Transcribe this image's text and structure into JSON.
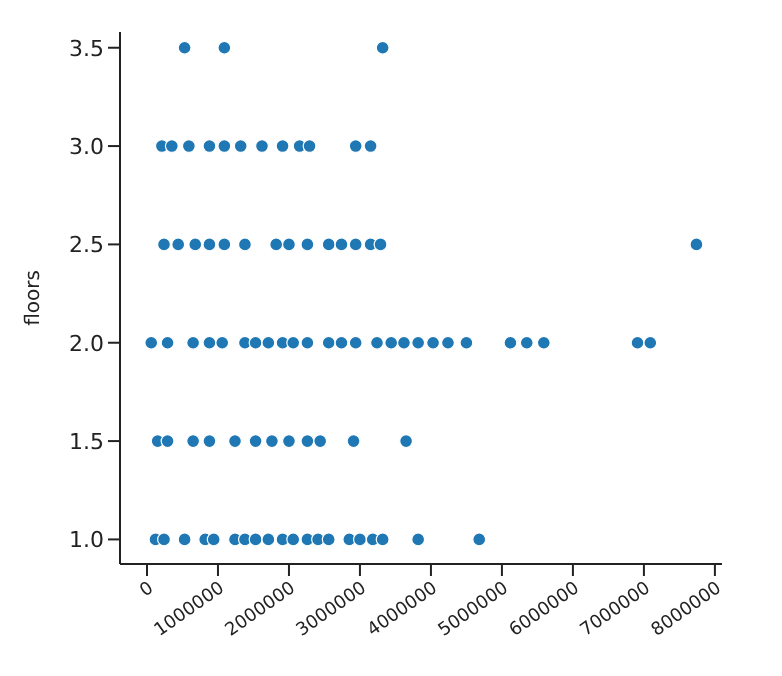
{
  "chart_data": {
    "type": "scatter",
    "ylabel": "floors",
    "color": "#1f77b4",
    "marker": "circle",
    "grid": false,
    "x": [
      60000,
      290000,
      650000,
      880000,
      1060000,
      1380000,
      1530000,
      1710000,
      1910000,
      2060000,
      2260000,
      2560000,
      2740000,
      2940000,
      3240000,
      3440000,
      3620000,
      3820000,
      4030000,
      4240000,
      4500000,
      5120000,
      5350000,
      5590000,
      6910000,
      7090000,
      120000,
      240000,
      530000,
      820000,
      940000,
      1240000,
      1380000,
      1530000,
      1710000,
      1910000,
      2060000,
      2260000,
      2410000,
      2560000,
      2850000,
      3000000,
      3180000,
      3320000,
      3820000,
      4680000,
      150000,
      290000,
      650000,
      880000,
      1240000,
      1530000,
      1760000,
      2000000,
      2260000,
      2440000,
      2910000,
      3650000,
      240000,
      440000,
      680000,
      880000,
      1090000,
      1380000,
      1820000,
      2000000,
      2260000,
      2560000,
      2740000,
      2940000,
      3150000,
      3290000,
      7740000,
      210000,
      350000,
      590000,
      880000,
      1090000,
      1320000,
      1620000,
      1910000,
      2150000,
      2290000,
      2940000,
      3150000,
      530000,
      1090000,
      3320000
    ],
    "values": [
      2,
      2,
      2,
      2,
      2,
      2,
      2,
      2,
      2,
      2,
      2,
      2,
      2,
      2,
      2,
      2,
      2,
      2,
      2,
      2,
      2,
      2,
      2,
      2,
      2,
      2,
      1,
      1,
      1,
      1,
      1,
      1,
      1,
      1,
      1,
      1,
      1,
      1,
      1,
      1,
      1,
      1,
      1,
      1,
      1,
      1,
      1.5,
      1.5,
      1.5,
      1.5,
      1.5,
      1.5,
      1.5,
      1.5,
      1.5,
      1.5,
      1.5,
      1.5,
      2.5,
      2.5,
      2.5,
      2.5,
      2.5,
      2.5,
      2.5,
      2.5,
      2.5,
      2.5,
      2.5,
      2.5,
      2.5,
      2.5,
      2.5,
      3,
      3,
      3,
      3,
      3,
      3,
      3,
      3,
      3,
      3,
      3,
      3,
      3.5,
      3.5,
      3.5
    ],
    "xlim": [
      -380000,
      8100000
    ],
    "xticks": [
      0,
      1000000,
      2000000,
      3000000,
      4000000,
      5000000,
      6000000,
      7000000,
      8000000
    ],
    "ylim": [
      0.875,
      3.58
    ],
    "yticks": [
      {
        "value": 1,
        "label": "1.0"
      },
      {
        "value": 1.5,
        "label": "1.5"
      },
      {
        "value": 2,
        "label": "2.0"
      },
      {
        "value": 2.5,
        "label": "2.5"
      },
      {
        "value": 3,
        "label": "3.0"
      },
      {
        "value": 3.5,
        "label": "3.5"
      }
    ]
  }
}
